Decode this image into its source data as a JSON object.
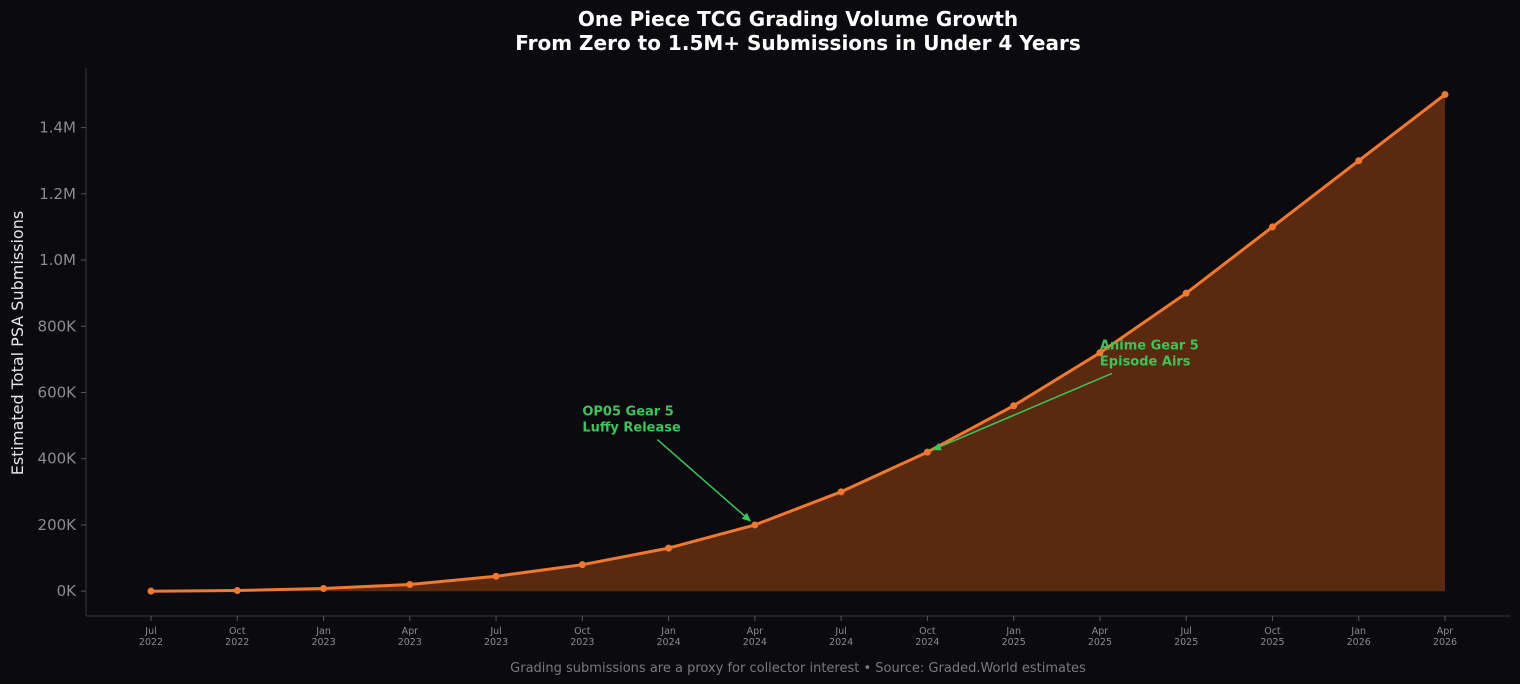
{
  "chart_data": {
    "type": "area",
    "title_line1": "One Piece TCG Grading Volume Growth",
    "title_line2": "From Zero to 1.5M+ Submissions in Under 4 Years",
    "xlabel": "",
    "ylabel": "Estimated Total PSA Submissions",
    "ylim": [
      -75000,
      1580000
    ],
    "yticks": [
      {
        "value": 0,
        "label": "0K"
      },
      {
        "value": 200000,
        "label": "200K"
      },
      {
        "value": 400000,
        "label": "400K"
      },
      {
        "value": 600000,
        "label": "600K"
      },
      {
        "value": 800000,
        "label": "800K"
      },
      {
        "value": 1000000,
        "label": "1.0M"
      },
      {
        "value": 1200000,
        "label": "1.2M"
      },
      {
        "value": 1400000,
        "label": "1.4M"
      }
    ],
    "categories": [
      {
        "month": "Jul",
        "year": "2022"
      },
      {
        "month": "Oct",
        "year": "2022"
      },
      {
        "month": "Jan",
        "year": "2023"
      },
      {
        "month": "Apr",
        "year": "2023"
      },
      {
        "month": "Jul",
        "year": "2023"
      },
      {
        "month": "Oct",
        "year": "2023"
      },
      {
        "month": "Jan",
        "year": "2024"
      },
      {
        "month": "Apr",
        "year": "2024"
      },
      {
        "month": "Jul",
        "year": "2024"
      },
      {
        "month": "Oct",
        "year": "2024"
      },
      {
        "month": "Jan",
        "year": "2025"
      },
      {
        "month": "Apr",
        "year": "2025"
      },
      {
        "month": "Jul",
        "year": "2025"
      },
      {
        "month": "Oct",
        "year": "2025"
      },
      {
        "month": "Jan",
        "year": "2026"
      },
      {
        "month": "Apr",
        "year": "2026"
      }
    ],
    "series": [
      {
        "values": [
          0,
          2000,
          8000,
          20000,
          45000,
          80000,
          130000,
          200000,
          300000,
          420000,
          560000,
          720000,
          900000,
          1100000,
          1300000,
          1500000
        ],
        "color": "#f07830",
        "fill_color": "#5a2a10"
      }
    ],
    "annotations": [
      {
        "line1": "OP05 Gear 5",
        "line2": "Luffy Release",
        "point_index": 7,
        "text_index": 5,
        "text_value": 500000
      },
      {
        "line1": "Anime Gear 5",
        "line2": "Episode Airs",
        "point_index": 9,
        "text_index": 11,
        "text_value": 700000
      }
    ],
    "annotation_color": "#3cc45a",
    "grid": false,
    "legend": "none",
    "footnote": "Grading submissions are a proxy for collector interest  •  Source: Graded.World estimates"
  }
}
